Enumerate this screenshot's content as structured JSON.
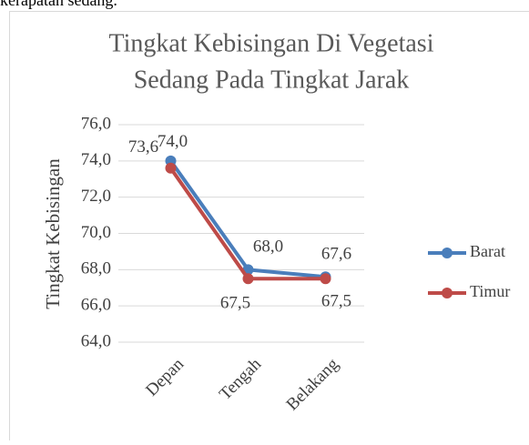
{
  "page_text": "kerapatan sedang.",
  "chart_data": {
    "type": "line",
    "title": [
      "Tingkat Kebisingan Di Vegetasi",
      "Sedang Pada Tingkat Jarak"
    ],
    "y_label": "Tingkat Kebisingan",
    "categories": [
      "Depan",
      "Tengah",
      "Belakang"
    ],
    "series": [
      {
        "name": "Barat",
        "color": "#4a7ebb",
        "values": [
          74.0,
          68.0,
          67.6
        ],
        "value_labels": [
          "74,0",
          "68,0",
          "67,6"
        ]
      },
      {
        "name": "Timur",
        "color": "#be4b48",
        "values": [
          73.6,
          67.5,
          67.5
        ],
        "value_labels": [
          "73,6",
          "67,5",
          "67,5"
        ]
      }
    ],
    "ylim": [
      64,
      76
    ],
    "yticks": [
      {
        "value": 64,
        "label": "64,0"
      },
      {
        "value": 66,
        "label": "66,0"
      },
      {
        "value": 68,
        "label": "68,0"
      },
      {
        "value": 70,
        "label": "70,0"
      },
      {
        "value": 72,
        "label": "72,0"
      },
      {
        "value": 74,
        "label": "74,0"
      },
      {
        "value": 76,
        "label": "76,0"
      }
    ],
    "grid": true,
    "legend": "right"
  }
}
